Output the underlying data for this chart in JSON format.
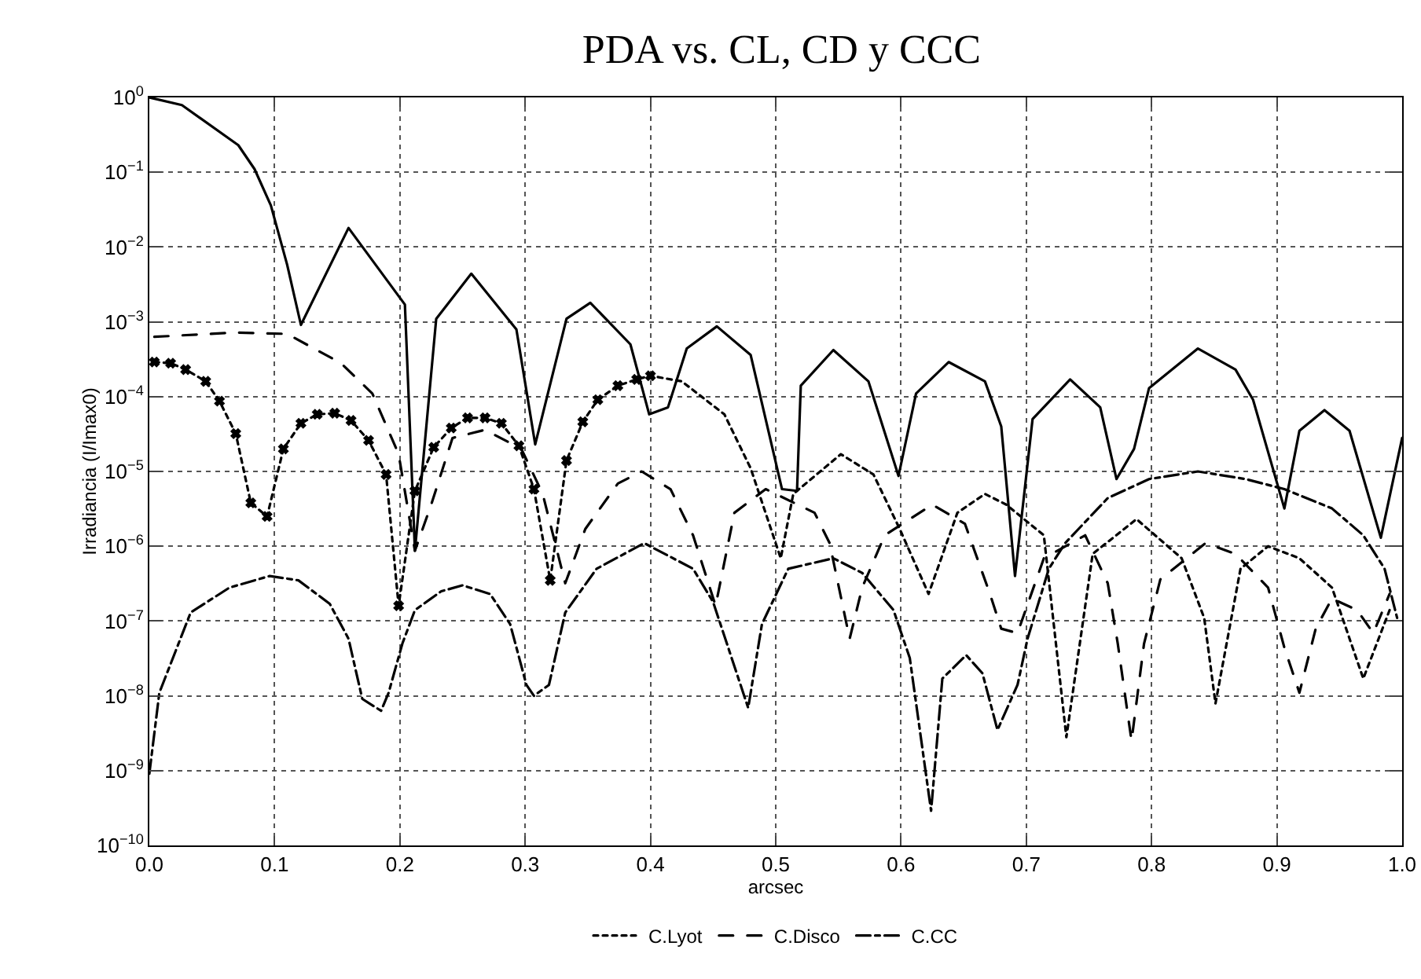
{
  "chart_data": {
    "type": "line",
    "title": "PDA vs. CL, CD y CCC",
    "xlabel": "arcsec",
    "ylabel": "Irradiancia (I/Imax0)",
    "log": "y",
    "grid": true,
    "legend": "bottom",
    "xlim": [
      0,
      1
    ],
    "ylim": [
      1e-10,
      1
    ],
    "xticks": [
      {
        "value": 0,
        "label": "0.0"
      },
      {
        "value": 0.1,
        "label": "0.1"
      },
      {
        "value": 0.2,
        "label": "0.2"
      },
      {
        "value": 0.3,
        "label": "0.3"
      },
      {
        "value": 0.4,
        "label": "0.4"
      },
      {
        "value": 0.5,
        "label": "0.5"
      },
      {
        "value": 0.6,
        "label": "0.6"
      },
      {
        "value": 0.7,
        "label": "0.7"
      },
      {
        "value": 0.8,
        "label": "0.8"
      },
      {
        "value": 0.9,
        "label": "0.9"
      },
      {
        "value": 1,
        "label": "1.0"
      }
    ],
    "yticks": [
      {
        "value": 1e-10,
        "label": "10$^{−10}$"
      },
      {
        "value": 1e-09,
        "label": "10$^{−9}$"
      },
      {
        "value": 1e-08,
        "label": "10$^{−8}$"
      },
      {
        "value": 1e-07,
        "label": "10$^{−7}$"
      },
      {
        "value": 1e-06,
        "label": "10$^{−6}$"
      },
      {
        "value": 1e-05,
        "label": "10$^{−5}$"
      },
      {
        "value": 0.0001,
        "label": "10$^{−4}$"
      },
      {
        "value": 0.001,
        "label": "10$^{−3}$"
      },
      {
        "value": 0.01,
        "label": "10$^{−2}$"
      },
      {
        "value": 0.1,
        "label": "10$^{−1}$"
      },
      {
        "value": 1,
        "label": "10$^{0}$"
      }
    ],
    "series": [
      {
        "color": "#000000",
        "line_style": "solid",
        "x": [
          0,
          0.026,
          0.071,
          0.084,
          0.097,
          0.11,
          0.121,
          0.159,
          0.204,
          0.212,
          0.229,
          0.257,
          0.293,
          0.308,
          0.333,
          0.352,
          0.384,
          0.399,
          0.414,
          0.429,
          0.453,
          0.48,
          0.505,
          0.517,
          0.52,
          0.546,
          0.574,
          0.598,
          0.612,
          0.638,
          0.667,
          0.68,
          0.691,
          0.705,
          0.735,
          0.759,
          0.772,
          0.786,
          0.798,
          0.837,
          0.867,
          0.881,
          0.906,
          0.918,
          0.938,
          0.958,
          0.983,
          1.0
        ],
        "values": [
          1,
          0.79,
          0.23,
          0.11,
          0.036,
          0.0058,
          0.00091,
          0.018,
          0.0017,
          8.7e-07,
          0.0011,
          0.0044,
          0.00079,
          2.3e-05,
          0.0011,
          0.0018,
          0.0005,
          5.8e-05,
          7.2e-05,
          0.00044,
          0.00087,
          0.00036,
          5.8e-06,
          5.5e-06,
          0.00014,
          0.00042,
          0.00016,
          8.7e-06,
          0.00011,
          0.00029,
          0.00016,
          4e-05,
          4e-07,
          5e-05,
          0.00017,
          7.2e-05,
          7.9e-06,
          2e-05,
          0.00013,
          0.00044,
          0.00023,
          9.1e-05,
          3.2e-06,
          3.5e-05,
          6.6e-05,
          3.5e-05,
          1.3e-06,
          2.8e-05
        ]
      },
      {
        "name": "C.Lyot",
        "color": "#000000",
        "line_style": "dotted",
        "x": [
          0.004,
          0.017,
          0.029,
          0.045,
          0.056,
          0.069,
          0.081,
          0.094,
          0.107,
          0.121,
          0.134,
          0.148,
          0.161,
          0.175,
          0.189,
          0.199,
          0.212,
          0.227,
          0.241,
          0.254,
          0.268,
          0.281,
          0.295,
          0.307,
          0.32,
          0.333,
          0.346,
          0.358,
          0.374,
          0.389,
          0.4,
          0.425,
          0.459,
          0.48,
          0.504,
          0.514,
          0.552,
          0.578,
          0.599,
          0.622,
          0.645,
          0.667,
          0.684,
          0.714,
          0.732,
          0.753,
          0.788,
          0.824,
          0.842,
          0.851,
          0.871,
          0.893,
          0.918,
          0.944,
          0.969,
          0.99
        ],
        "values": [
          0.00029,
          0.00028,
          0.00023,
          0.00016,
          8.7e-05,
          3.2e-05,
          3.8e-06,
          2.5e-06,
          2e-05,
          4.4e-05,
          5.8e-05,
          6e-05,
          4.8e-05,
          2.6e-05,
          9.1e-06,
          1.6e-07,
          5.5e-06,
          2.1e-05,
          3.8e-05,
          5.2e-05,
          5.2e-05,
          4.4e-05,
          2.2e-05,
          5.8e-06,
          3.5e-07,
          1.4e-05,
          4.6e-05,
          9.1e-05,
          0.00014,
          0.00017,
          0.00019,
          0.00016,
          5.8e-05,
          1.1e-05,
          6.9e-07,
          5e-06,
          1.7e-05,
          9.1e-06,
          1.7e-06,
          2.3e-07,
          2.8e-06,
          5e-06,
          3.6e-06,
          1.4e-06,
          2.8e-09,
          7.9e-07,
          2.3e-06,
          6.9e-07,
          1.1e-07,
          7.9e-09,
          5e-07,
          1e-06,
          6.9e-07,
          2.8e-07,
          1.7e-08,
          1.4e-07
        ]
      },
      {
        "type": "scatter",
        "marker": "cross",
        "color": "#000000",
        "x": [
          0.004,
          0.017,
          0.029,
          0.045,
          0.056,
          0.069,
          0.081,
          0.094,
          0.107,
          0.121,
          0.134,
          0.148,
          0.161,
          0.175,
          0.189,
          0.199,
          0.212,
          0.227,
          0.241,
          0.254,
          0.268,
          0.281,
          0.295,
          0.307,
          0.32,
          0.333,
          0.346,
          0.358,
          0.374,
          0.389,
          0.4
        ],
        "values": [
          0.00029,
          0.00028,
          0.00023,
          0.00016,
          8.7e-05,
          3.2e-05,
          3.8e-06,
          2.5e-06,
          2e-05,
          4.4e-05,
          5.8e-05,
          6e-05,
          4.8e-05,
          2.6e-05,
          9.1e-06,
          1.6e-07,
          5.5e-06,
          2.1e-05,
          3.8e-05,
          5.2e-05,
          5.2e-05,
          4.4e-05,
          2.2e-05,
          5.8e-06,
          3.5e-07,
          1.4e-05,
          4.6e-05,
          9.1e-05,
          0.00014,
          0.00017,
          0.00019
        ]
      },
      {
        "name": "C.Disco",
        "color": "#000000",
        "line_style": "dashed",
        "x": [
          0.004,
          0.068,
          0.11,
          0.153,
          0.178,
          0.199,
          0.212,
          0.225,
          0.242,
          0.268,
          0.297,
          0.314,
          0.332,
          0.348,
          0.374,
          0.393,
          0.416,
          0.434,
          0.452,
          0.467,
          0.492,
          0.531,
          0.543,
          0.559,
          0.569,
          0.587,
          0.625,
          0.651,
          0.671,
          0.68,
          0.693,
          0.714,
          0.747,
          0.765,
          0.773,
          0.784,
          0.794,
          0.807,
          0.843,
          0.867,
          0.893,
          0.906,
          0.918,
          0.931,
          0.944,
          0.964,
          0.977,
          0.99
        ],
        "values": [
          0.00063,
          0.00072,
          0.00069,
          0.00028,
          0.00011,
          1.7e-05,
          8.7e-07,
          3.6e-06,
          2.8e-05,
          3.6e-05,
          2e-05,
          5e-06,
          3.2e-07,
          1.7e-06,
          6.9e-06,
          1e-05,
          5.8e-06,
          1.4e-06,
          1.6e-07,
          2.8e-06,
          5.8e-06,
          2.8e-06,
          1.1e-06,
          5.8e-08,
          2.8e-07,
          1.4e-06,
          3.6e-06,
          2e-06,
          2.3e-07,
          7.9e-08,
          6.9e-08,
          6.9e-07,
          1.4e-06,
          3.2e-07,
          5e-08,
          2.5e-09,
          5e-08,
          3.6e-07,
          1.1e-06,
          7.9e-07,
          2.8e-07,
          4.4e-08,
          1.1e-08,
          7.9e-08,
          2e-07,
          1.4e-07,
          6.9e-08,
          2.3e-07
        ]
      },
      {
        "name": "C.CC",
        "color": "#000000",
        "line_style": "dashdot",
        "x": [
          0,
          0.008,
          0.033,
          0.064,
          0.096,
          0.119,
          0.144,
          0.159,
          0.17,
          0.185,
          0.191,
          0.202,
          0.212,
          0.233,
          0.25,
          0.272,
          0.288,
          0.301,
          0.307,
          0.319,
          0.332,
          0.357,
          0.395,
          0.434,
          0.45,
          0.478,
          0.489,
          0.51,
          0.546,
          0.569,
          0.594,
          0.607,
          0.624,
          0.633,
          0.652,
          0.665,
          0.677,
          0.693,
          0.701,
          0.718,
          0.731,
          0.765,
          0.798,
          0.837,
          0.875,
          0.906,
          0.944,
          0.969,
          0.986,
          0.996
        ],
        "values": [
          9.1e-10,
          1.1e-08,
          1.3e-07,
          2.8e-07,
          4e-07,
          3.5e-07,
          1.7e-07,
          5.8e-08,
          9.1e-09,
          6.3e-09,
          1.1e-08,
          5e-08,
          1.4e-07,
          2.5e-07,
          3e-07,
          2.3e-07,
          9.1e-08,
          1.4e-08,
          1e-08,
          1.4e-08,
          1.3e-07,
          5e-07,
          1.1e-06,
          5e-07,
          1.8e-07,
          6.9e-09,
          9.1e-08,
          5e-07,
          6.9e-07,
          4.4e-07,
          1.4e-07,
          3.2e-08,
          2.9e-10,
          1.7e-08,
          3.5e-08,
          2e-08,
          3.5e-09,
          1.4e-08,
          5.8e-08,
          5e-07,
          1.1e-06,
          4.4e-06,
          7.9e-06,
          1e-05,
          7.9e-06,
          5.8e-06,
          3.2e-06,
          1.4e-06,
          5e-07,
          1.1e-07
        ]
      }
    ]
  }
}
